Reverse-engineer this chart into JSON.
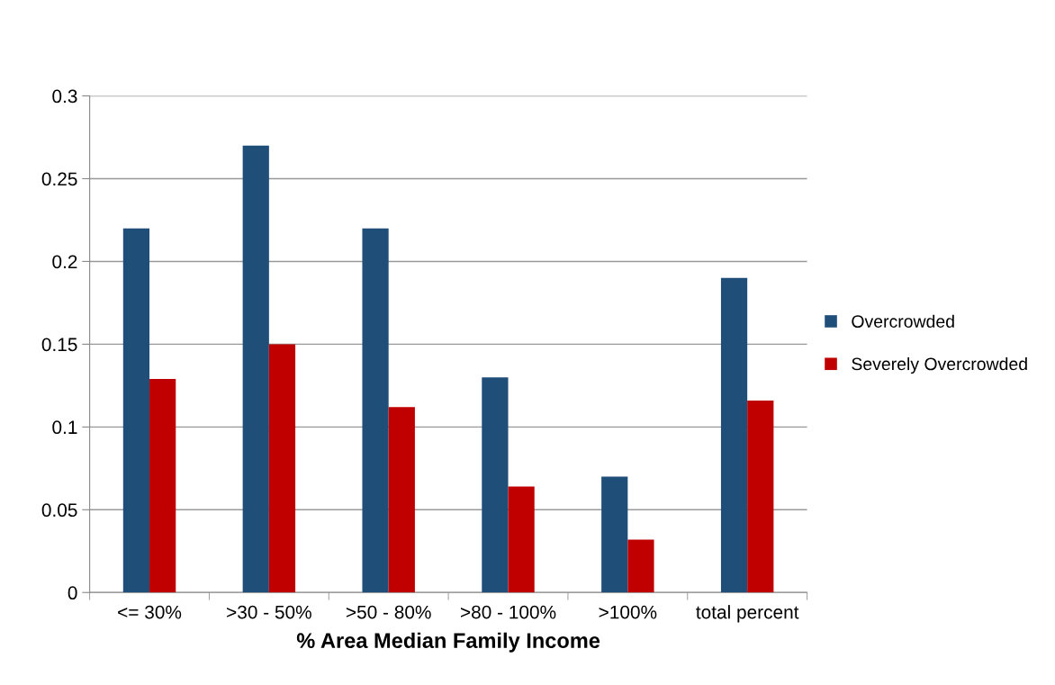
{
  "chart_data": {
    "type": "bar",
    "xlabel": "% Area Median Family Income",
    "categories": [
      "<= 30%",
      ">30 - 50%",
      ">50 - 80%",
      ">80 - 100%",
      ">100%",
      "total percent"
    ],
    "series": [
      {
        "name": "Overcrowded",
        "color": "#1f4e79",
        "values": [
          0.22,
          0.27,
          0.22,
          0.13,
          0.07,
          0.19
        ]
      },
      {
        "name": "Severely Overcrowded",
        "color": "#c00000",
        "values": [
          0.129,
          0.15,
          0.112,
          0.064,
          0.032,
          0.116
        ]
      }
    ],
    "ylim": [
      0,
      0.3
    ],
    "yticks": [
      {
        "value": 0,
        "label": "0"
      },
      0.05,
      0.1,
      0.15,
      0.2,
      0.25,
      0.3
    ],
    "grid": "y",
    "legend": "right"
  }
}
